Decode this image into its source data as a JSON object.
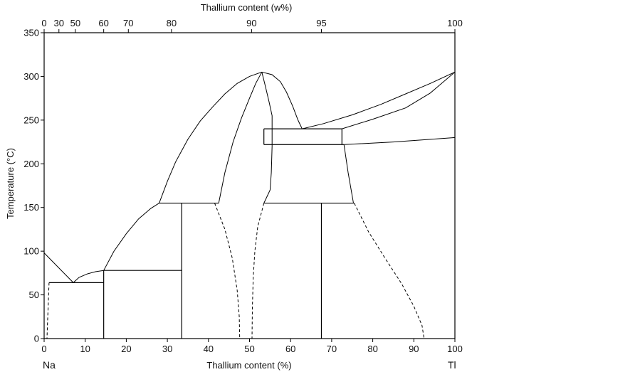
{
  "chart_data": {
    "type": "line",
    "title": "",
    "xlabel": "Thallium content (%)",
    "x2label": "Thallium content (w%)",
    "ylabel": "Temperature (°C)",
    "xlim": [
      0,
      100
    ],
    "ylim": [
      0,
      350
    ],
    "x_ticks": [
      "0",
      "10",
      "20",
      "30",
      "40",
      "50",
      "60",
      "70",
      "80",
      "90",
      "100"
    ],
    "x2_ticks": [
      {
        "at": 0,
        "label": "0"
      },
      {
        "at": 3.6,
        "label": "30"
      },
      {
        "at": 7.6,
        "label": "50"
      },
      {
        "at": 14.5,
        "label": "60"
      },
      {
        "at": 20.5,
        "label": "70"
      },
      {
        "at": 31.0,
        "label": "80"
      },
      {
        "at": 50.5,
        "label": "90"
      },
      {
        "at": 67.5,
        "label": "95"
      },
      {
        "at": 100,
        "label": "100"
      }
    ],
    "y_ticks": [
      "0",
      "50",
      "100",
      "150",
      "200",
      "250",
      "300",
      "350"
    ],
    "end_labels": {
      "left": "Na",
      "right": "Tl"
    },
    "grid": false,
    "series": [
      {
        "style": "solid",
        "points": [
          [
            0,
            98
          ],
          [
            7.1,
            64
          ]
        ]
      },
      {
        "style": "solid",
        "points": [
          [
            7.1,
            64
          ],
          [
            8.5,
            70
          ],
          [
            10.5,
            74
          ],
          [
            12.5,
            76.5
          ],
          [
            14.5,
            78
          ]
        ]
      },
      {
        "style": "solid",
        "points": [
          [
            14.5,
            78
          ],
          [
            17,
            100
          ],
          [
            20,
            120
          ],
          [
            23,
            137
          ],
          [
            26,
            149
          ],
          [
            28,
            155
          ]
        ]
      },
      {
        "style": "solid",
        "points": [
          [
            28,
            155
          ],
          [
            30,
            180
          ],
          [
            32,
            202
          ],
          [
            35,
            228
          ],
          [
            38,
            249
          ],
          [
            41,
            265
          ],
          [
            44,
            280
          ],
          [
            47,
            292
          ],
          [
            50,
            300
          ],
          [
            53,
            305
          ]
        ]
      },
      {
        "style": "solid",
        "points": [
          [
            42.5,
            155
          ],
          [
            44,
            190
          ],
          [
            46,
            225
          ],
          [
            48,
            252
          ],
          [
            50,
            275
          ],
          [
            51.5,
            292
          ],
          [
            53,
            305
          ]
        ]
      },
      {
        "style": "solid",
        "points": [
          [
            53,
            305
          ],
          [
            53.8,
            290
          ],
          [
            54.8,
            270
          ],
          [
            55.5,
            255
          ],
          [
            55.5,
            240
          ],
          [
            55.5,
            220
          ],
          [
            55.3,
            190
          ],
          [
            55,
            170
          ],
          [
            53.5,
            155
          ]
        ]
      },
      {
        "style": "solid",
        "points": [
          [
            53,
            305
          ],
          [
            55.5,
            302
          ],
          [
            57.5,
            294
          ],
          [
            59,
            282
          ],
          [
            60.5,
            266
          ],
          [
            61.8,
            250
          ],
          [
            62.8,
            240
          ]
        ]
      },
      {
        "style": "solid",
        "points": [
          [
            62.8,
            240
          ],
          [
            68,
            246
          ],
          [
            75,
            256
          ],
          [
            82,
            268
          ],
          [
            88,
            280
          ],
          [
            94,
            292
          ],
          [
            100,
            305
          ]
        ]
      },
      {
        "style": "solid",
        "points": [
          [
            72.5,
            240
          ],
          [
            80,
            251
          ],
          [
            88,
            264
          ],
          [
            94,
            281
          ],
          [
            100,
            305
          ]
        ]
      },
      {
        "style": "solid",
        "points": [
          [
            73,
            222
          ],
          [
            85,
            225
          ],
          [
            100,
            230
          ]
        ]
      },
      {
        "style": "solid",
        "points": [
          [
            73,
            222
          ],
          [
            74,
            190
          ],
          [
            75.3,
            155
          ]
        ]
      },
      {
        "style": "dashed",
        "points": [
          [
            1.2,
            64
          ],
          [
            1.0,
            40
          ],
          [
            0.8,
            15
          ],
          [
            0.7,
            0
          ]
        ]
      },
      {
        "style": "dashed",
        "points": [
          [
            41.5,
            155
          ],
          [
            44,
            125
          ],
          [
            45.8,
            92
          ],
          [
            47,
            55
          ],
          [
            47.5,
            25
          ],
          [
            47.6,
            0
          ]
        ]
      },
      {
        "style": "dashed",
        "points": [
          [
            53.5,
            155
          ],
          [
            52,
            128
          ],
          [
            51.3,
            100
          ],
          [
            50.9,
            70
          ],
          [
            50.7,
            35
          ],
          [
            50.6,
            0
          ]
        ]
      },
      {
        "style": "dashed",
        "points": [
          [
            75.5,
            155
          ],
          [
            79,
            122
          ],
          [
            83,
            92
          ],
          [
            87,
            63
          ],
          [
            90,
            37
          ],
          [
            92,
            15
          ],
          [
            92.5,
            0
          ]
        ]
      }
    ],
    "horizontal_lines": [
      {
        "y": 64,
        "x1": 1.2,
        "x2": 14.5
      },
      {
        "y": 78,
        "x1": 14.5,
        "x2": 33.5
      },
      {
        "y": 155,
        "x1": 28,
        "x2": 42.5
      },
      {
        "y": 155,
        "x1": 53.5,
        "x2": 75.5
      },
      {
        "y": 240,
        "x1": 53.5,
        "x2": 72.5
      },
      {
        "y": 222,
        "x1": 53.5,
        "x2": 73
      }
    ],
    "vertical_lines": [
      {
        "x": 14.5,
        "y1": 0,
        "y2": 78
      },
      {
        "x": 33.5,
        "y1": 0,
        "y2": 155
      },
      {
        "x": 67.5,
        "y1": 0,
        "y2": 155
      },
      {
        "x": 53.5,
        "y1": 222,
        "y2": 240
      },
      {
        "x": 72.5,
        "y1": 222,
        "y2": 240
      }
    ]
  }
}
